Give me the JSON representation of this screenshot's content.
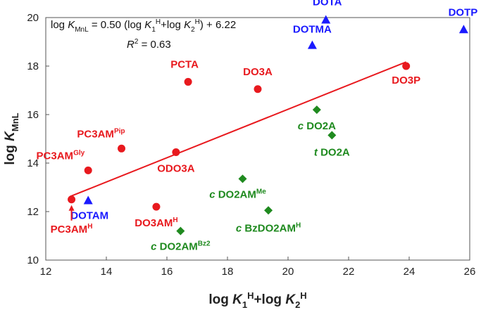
{
  "chart_data": {
    "type": "scatter",
    "x_axis": {
      "label_parts": [
        {
          "t": "log "
        },
        {
          "t": "K",
          "i": true
        },
        {
          "t": "1",
          "sub": true
        },
        {
          "t": "H",
          "sup": true
        },
        {
          "t": "+log "
        },
        {
          "t": "K",
          "i": true
        },
        {
          "t": "2",
          "sub": true
        },
        {
          "t": "H",
          "sup": true
        }
      ],
      "range": [
        12,
        26
      ],
      "ticks": [
        12,
        14,
        16,
        18,
        20,
        22,
        24,
        26
      ]
    },
    "y_axis": {
      "label_parts": [
        {
          "t": "log "
        },
        {
          "t": "K",
          "i": true
        },
        {
          "t": "MnL",
          "sub": true
        }
      ],
      "range": [
        10,
        20
      ],
      "ticks": [
        10,
        12,
        14,
        16,
        18,
        20
      ]
    },
    "annotations": {
      "equation_parts": [
        {
          "t": "log "
        },
        {
          "t": "K",
          "i": true
        },
        {
          "t": "MnL",
          "sub": true
        },
        {
          "t": " = 0.50 (log "
        },
        {
          "t": "K",
          "i": true
        },
        {
          "t": "1",
          "sub": true
        },
        {
          "t": "H",
          "sup": true
        },
        {
          "t": "+log "
        },
        {
          "t": "K",
          "i": true
        },
        {
          "t": "2",
          "sub": true
        },
        {
          "t": "H",
          "sup": true
        },
        {
          "t": ") + 6.22"
        }
      ],
      "r2_parts": [
        {
          "t": "R",
          "i": true
        },
        {
          "t": "2",
          "sup": true
        },
        {
          "t": " = 0.63"
        }
      ]
    },
    "trendline": {
      "slope": 0.5,
      "intercept": 6.22,
      "x_start": 12.8,
      "x_end": 23.9,
      "color": "#e8191e"
    },
    "series": [
      {
        "name": "red",
        "marker": "circle",
        "color": "#e8191e",
        "points": [
          {
            "x": 12.85,
            "y": 12.5,
            "label_parts": [
              {
                "t": "PC3AM"
              },
              {
                "t": "H",
                "sup": true
              }
            ]
          },
          {
            "x": 13.4,
            "y": 13.7,
            "label_parts": [
              {
                "t": "PC3AM"
              },
              {
                "t": "Gly",
                "sup": true
              }
            ]
          },
          {
            "x": 14.5,
            "y": 14.6,
            "label_parts": [
              {
                "t": "PC3AM"
              },
              {
                "t": "Pip",
                "sup": true
              }
            ]
          },
          {
            "x": 15.65,
            "y": 12.2,
            "label_parts": [
              {
                "t": "DO3AM"
              },
              {
                "t": "H",
                "sup": true
              }
            ]
          },
          {
            "x": 16.3,
            "y": 14.45,
            "label_parts": [
              {
                "t": "ODO3A"
              }
            ]
          },
          {
            "x": 16.7,
            "y": 17.35,
            "label_parts": [
              {
                "t": "PCTA"
              }
            ]
          },
          {
            "x": 19.0,
            "y": 17.05,
            "label_parts": [
              {
                "t": "DO3A"
              }
            ]
          },
          {
            "x": 23.9,
            "y": 18.0,
            "label_parts": [
              {
                "t": "DO3P"
              }
            ]
          }
        ]
      },
      {
        "name": "blue",
        "marker": "triangle",
        "color": "#1a1aff",
        "points": [
          {
            "x": 13.4,
            "y": 12.45,
            "label_parts": [
              {
                "t": "DOTAM"
              }
            ]
          },
          {
            "x": 20.8,
            "y": 18.85,
            "label_parts": [
              {
                "t": "DOTMA"
              }
            ]
          },
          {
            "x": 21.25,
            "y": 19.9,
            "label_parts": [
              {
                "t": "DOTA"
              }
            ]
          },
          {
            "x": 25.8,
            "y": 19.5,
            "label_parts": [
              {
                "t": "DOTP"
              }
            ]
          }
        ]
      },
      {
        "name": "green",
        "marker": "diamond",
        "color": "#1f8a1f",
        "points": [
          {
            "x": 16.45,
            "y": 11.2,
            "label_parts": [
              {
                "t": "c",
                "i": true
              },
              {
                "t": " DO2AM"
              },
              {
                "t": "Bz2",
                "sup": true
              }
            ]
          },
          {
            "x": 18.5,
            "y": 13.35,
            "label_parts": [
              {
                "t": "c",
                "i": true
              },
              {
                "t": " DO2AM"
              },
              {
                "t": "Me",
                "sup": true
              }
            ]
          },
          {
            "x": 19.35,
            "y": 12.05,
            "label_parts": [
              {
                "t": "c",
                "i": true
              },
              {
                "t": " BzDO2AM"
              },
              {
                "t": "H",
                "sup": true
              }
            ]
          },
          {
            "x": 20.95,
            "y": 16.2,
            "label_parts": [
              {
                "t": "c",
                "i": true
              },
              {
                "t": " DO2A"
              }
            ]
          },
          {
            "x": 21.45,
            "y": 15.15,
            "label_parts": [
              {
                "t": "t",
                "i": true
              },
              {
                "t": " DO2A"
              }
            ]
          }
        ]
      }
    ]
  }
}
